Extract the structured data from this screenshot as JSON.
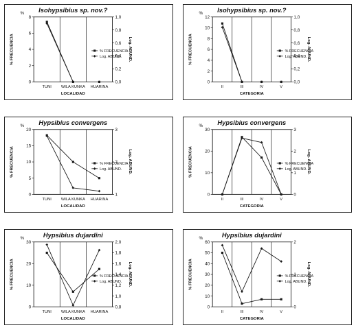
{
  "chart_data": [
    {
      "type": "line",
      "title": "Isohypsibius   sp. nov.?",
      "xlabel": "LOCALIDAD",
      "ylabel_left": "% FRECUENCIA",
      "ylabel_right": "Log. ABUND.",
      "left_unit": "%",
      "categories": [
        "TUNI",
        "WILA KUNKA",
        "HUARINA"
      ],
      "ylim_left": [
        0,
        8
      ],
      "yticks_left": [
        "0",
        "2",
        "4",
        "6",
        "8"
      ],
      "ylim_right": [
        0,
        1
      ],
      "yticks_right": [
        "0,0",
        "0,2",
        "0,4",
        "0,6",
        "0,8",
        "1,0"
      ],
      "series": [
        {
          "name": "% FRECUENCIA",
          "axis": "left",
          "values": [
            7.4,
            0,
            0
          ]
        },
        {
          "name": "Log. ABUND.",
          "axis": "right",
          "values": [
            0.9,
            0,
            0
          ]
        }
      ],
      "segments": [
        [
          0,
          1
        ]
      ]
    },
    {
      "type": "line",
      "title": "Isohypsibius   sp. nov.?",
      "xlabel": "CATEGORIA",
      "ylabel_left": "% FRECUENCIA",
      "ylabel_right": "Log. ABUND.",
      "left_unit": "%",
      "categories": [
        "II",
        "III",
        "IV",
        "V"
      ],
      "ylim_left": [
        0,
        12
      ],
      "yticks_left": [
        "0",
        "2",
        "4",
        "6",
        "8",
        "10",
        "12"
      ],
      "ylim_right": [
        0,
        1
      ],
      "yticks_right": [
        "0,0",
        "0,2",
        "0,4",
        "0,6",
        "0,8",
        "1,0"
      ],
      "series": [
        {
          "name": "% FRECUENCIA",
          "axis": "left",
          "values": [
            10.8,
            0,
            0,
            0
          ]
        },
        {
          "name": "Log. ABUND.",
          "axis": "right",
          "values": [
            0.84,
            0,
            0,
            0
          ]
        }
      ],
      "segments": [
        [
          0,
          1
        ]
      ]
    },
    {
      "type": "line",
      "title": "Hypsibius   convergens",
      "xlabel": "LOCALIDAD",
      "ylabel_left": "% FRECUENCIA",
      "ylabel_right": "Log. ABUND.",
      "left_unit": "%",
      "categories": [
        "TUNI",
        "WILA KUNKA",
        "HUARINA"
      ],
      "ylim_left": [
        0,
        20
      ],
      "yticks_left": [
        "0",
        "5",
        "10",
        "15",
        "20"
      ],
      "ylim_right": [
        1,
        3
      ],
      "yticks_right": [
        "1",
        "2",
        "3"
      ],
      "series": [
        {
          "name": "% FRECUENCIA",
          "axis": "left",
          "values": [
            18.2,
            10,
            5
          ]
        },
        {
          "name": "Log. ABUND.",
          "axis": "right",
          "values": [
            2.8,
            1.2,
            1.1
          ]
        }
      ],
      "segments": [
        [
          0,
          1
        ],
        [
          1,
          2
        ]
      ]
    },
    {
      "type": "line",
      "title": "Hypsibius   convergens",
      "xlabel": "CATEGORIA",
      "ylabel_left": "% FRECUENCIA",
      "ylabel_right": "Log. ABUND.",
      "left_unit": "%",
      "categories": [
        "II",
        "III",
        "IV",
        "V"
      ],
      "ylim_left": [
        0,
        30
      ],
      "yticks_left": [
        "0",
        "10",
        "20",
        "30"
      ],
      "ylim_right": [
        0,
        3
      ],
      "yticks_right": [
        "0",
        "1",
        "2",
        "3"
      ],
      "series": [
        {
          "name": "% FRECUENCIA",
          "axis": "left",
          "values": [
            0,
            26.5,
            17,
            0
          ]
        },
        {
          "name": "Log. ABUND.",
          "axis": "right",
          "values": [
            0,
            2.6,
            2.4,
            0
          ]
        }
      ],
      "segments": [
        [
          0,
          1
        ],
        [
          1,
          2
        ],
        [
          2,
          3
        ]
      ]
    },
    {
      "type": "line",
      "title": "Hypsibius   dujardini",
      "xlabel": "LOCALIDAD",
      "ylabel_left": "% FRECUENCIA",
      "ylabel_right": "Log. ABUND.",
      "left_unit": "%",
      "categories": [
        "TUNI",
        "WILA KUNKA",
        "HUARINA"
      ],
      "ylim_left": [
        0,
        30
      ],
      "yticks_left": [
        "0",
        "10",
        "20",
        "30"
      ],
      "ylim_right": [
        0.8,
        2.0
      ],
      "yticks_right": [
        "0,8",
        "1,0",
        "1,2",
        "1,4",
        "1,6",
        "1,8",
        "2,0"
      ],
      "series": [
        {
          "name": "% FRECUENCIA",
          "axis": "left",
          "values": [
            25,
            7,
            17.5
          ]
        },
        {
          "name": "Log. ABUND.",
          "axis": "right",
          "values": [
            1.95,
            0.83,
            1.85
          ]
        }
      ],
      "segments": [
        [
          0,
          1
        ],
        [
          1,
          2
        ]
      ]
    },
    {
      "type": "line",
      "title": "Hypsibius   dujardini",
      "xlabel": "CATEGORIA",
      "ylabel_left": "% FRECUENCIA",
      "ylabel_right": "Log. ABUND.",
      "left_unit": "%",
      "categories": [
        "II",
        "III",
        "IV",
        "V"
      ],
      "ylim_left": [
        0,
        60
      ],
      "yticks_left": [
        "0",
        "10",
        "20",
        "30",
        "40",
        "50",
        "60"
      ],
      "ylim_right": [
        0,
        2
      ],
      "yticks_right": [
        "0",
        "1",
        "2"
      ],
      "series": [
        {
          "name": "% FRECUENCIA",
          "axis": "left",
          "values": [
            50,
            3,
            7,
            7
          ]
        },
        {
          "name": "Log. ABUND.",
          "axis": "right",
          "values": [
            1.9,
            0.47,
            1.8,
            1.4
          ]
        }
      ],
      "segments": [
        [
          0,
          1
        ],
        [
          1,
          2
        ],
        [
          2,
          3
        ]
      ]
    }
  ],
  "style": {
    "line_color": "#1a1a1a",
    "border_color": "#222222"
  }
}
